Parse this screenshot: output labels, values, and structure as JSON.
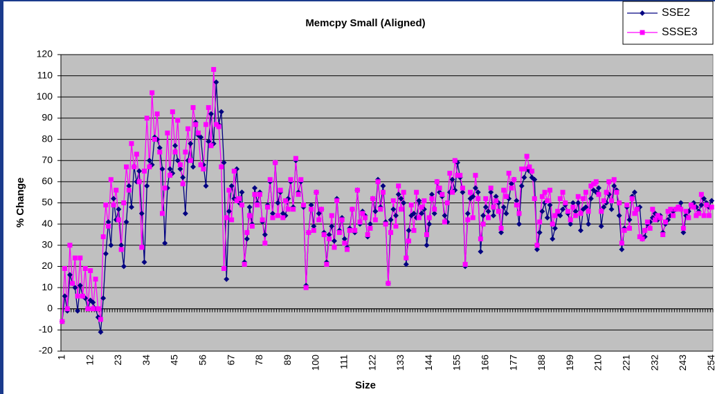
{
  "chart_data": {
    "type": "line",
    "title": "Memcpy Small (Aligned)",
    "x_label": "Size",
    "y_label": "% Change",
    "x": [
      1,
      2,
      3,
      4,
      5,
      6,
      7,
      8,
      9,
      10,
      11,
      12,
      13,
      14,
      15,
      16,
      17,
      18,
      19,
      20,
      21,
      22,
      23,
      24,
      25,
      26,
      27,
      28,
      29,
      30,
      31,
      32,
      33,
      34,
      35,
      36,
      37,
      38,
      39,
      40,
      41,
      42,
      43,
      44,
      45,
      46,
      47,
      48,
      49,
      50,
      51,
      52,
      53,
      54,
      55,
      56,
      57,
      58,
      59,
      60,
      61,
      62,
      63,
      64,
      65,
      66,
      67,
      68,
      69,
      70,
      71,
      72,
      73,
      74,
      75,
      76,
      77,
      78,
      79,
      80,
      81,
      82,
      83,
      84,
      85,
      86,
      87,
      88,
      89,
      90,
      91,
      92,
      93,
      94,
      95,
      96,
      97,
      98,
      99,
      100,
      101,
      102,
      103,
      104,
      105,
      106,
      107,
      108,
      109,
      110,
      111,
      112,
      113,
      114,
      115,
      116,
      117,
      118,
      119,
      120,
      121,
      122,
      123,
      124,
      125,
      126,
      127,
      128,
      129,
      130,
      131,
      132,
      133,
      134,
      135,
      136,
      137,
      138,
      139,
      140,
      141,
      142,
      143,
      144,
      145,
      146,
      147,
      148,
      149,
      150,
      151,
      152,
      153,
      154,
      155,
      156,
      157,
      158,
      159,
      160,
      161,
      162,
      163,
      164,
      165,
      166,
      167,
      168,
      169,
      170,
      171,
      172,
      173,
      174,
      175,
      176,
      177,
      178,
      179,
      180,
      181,
      182,
      183,
      184,
      185,
      186,
      187,
      188,
      189,
      190,
      191,
      192,
      193,
      194,
      195,
      196,
      197,
      198,
      199,
      200,
      201,
      202,
      203,
      204,
      205,
      206,
      207,
      208,
      209,
      210,
      211,
      212,
      213,
      214,
      215,
      216,
      217,
      218,
      219,
      220,
      221,
      222,
      223,
      224,
      225,
      226,
      227,
      228,
      229,
      230,
      231,
      232,
      233,
      234,
      235,
      236,
      237,
      238,
      239,
      240,
      241,
      242,
      243,
      244,
      245,
      246,
      247,
      248,
      249,
      250,
      251,
      252,
      253,
      254
    ],
    "xlim": [
      0.5,
      254.5
    ],
    "xticks": [
      1,
      12,
      23,
      34,
      45,
      56,
      67,
      78,
      89,
      100,
      111,
      122,
      133,
      144,
      155,
      166,
      177,
      188,
      199,
      210,
      221,
      232,
      243,
      254
    ],
    "ylim": [
      -20,
      120
    ],
    "yticks": [
      -20,
      -10,
      0,
      10,
      20,
      30,
      40,
      50,
      60,
      70,
      80,
      90,
      100,
      110,
      120
    ],
    "grid": true,
    "legend": "top-right",
    "series": [
      {
        "name": "SSE2",
        "color": "#000080",
        "marker": "diamond",
        "values": [
          -6,
          6,
          -1,
          16,
          12,
          10,
          -1,
          11,
          6,
          5,
          0,
          4,
          3,
          0,
          -4,
          -11,
          5,
          26,
          41,
          30,
          52,
          42,
          47,
          30,
          20,
          41,
          58,
          48,
          67,
          60,
          65,
          45,
          22,
          58,
          70,
          68,
          81,
          80,
          76,
          66,
          31,
          57,
          66,
          64,
          77,
          70,
          66,
          62,
          45,
          70,
          78,
          67,
          88,
          82,
          81,
          68,
          58,
          79,
          92,
          78,
          107,
          87,
          93,
          69,
          14,
          46,
          58,
          52,
          66,
          50,
          55,
          22,
          33,
          48,
          40,
          57,
          50,
          55,
          41,
          35,
          49,
          60,
          45,
          69,
          50,
          55,
          45,
          44,
          52,
          60,
          48,
          70,
          55,
          60,
          48,
          11,
          36,
          49,
          39,
          55,
          45,
          47,
          36,
          22,
          35,
          39,
          32,
          52,
          37,
          43,
          33,
          29,
          38,
          47,
          36,
          56,
          40,
          46,
          44,
          34,
          40,
          52,
          46,
          61,
          48,
          58,
          41,
          12,
          42,
          47,
          44,
          54,
          52,
          50,
          21,
          37,
          44,
          45,
          43,
          51,
          45,
          47,
          30,
          40,
          54,
          45,
          60,
          55,
          53,
          44,
          41,
          55,
          61,
          56,
          69,
          62,
          55,
          20,
          45,
          52,
          53,
          57,
          55,
          27,
          44,
          48,
          46,
          55,
          44,
          53,
          50,
          36,
          48,
          45,
          52,
          59,
          61,
          51,
          40,
          58,
          62,
          66,
          65,
          62,
          61,
          28,
          36,
          46,
          50,
          43,
          49,
          33,
          38,
          45,
          44,
          47,
          49,
          45,
          40,
          50,
          46,
          50,
          37,
          47,
          48,
          40,
          52,
          56,
          55,
          57,
          39,
          48,
          50,
          54,
          47,
          58,
          56,
          44,
          28,
          38,
          48,
          42,
          53,
          55,
          47,
          48,
          33,
          34,
          40,
          41,
          43,
          45,
          42,
          44,
          36,
          40,
          42,
          44,
          46,
          47,
          48,
          50,
          36,
          44,
          46,
          49,
          50,
          48,
          46,
          49,
          52,
          50,
          48,
          51
        ]
      },
      {
        "name": "SSSE3",
        "color": "#ff00ff",
        "marker": "square",
        "values": [
          -6,
          19,
          0,
          30,
          12,
          24,
          6,
          24,
          6,
          19,
          0,
          18,
          0,
          14,
          0,
          -5,
          34,
          49,
          39,
          61,
          49,
          56,
          42,
          28,
          50,
          67,
          56,
          78,
          67,
          73,
          60,
          29,
          65,
          90,
          67,
          102,
          80,
          92,
          74,
          45,
          57,
          83,
          63,
          93,
          74,
          89,
          68,
          59,
          74,
          85,
          70,
          95,
          87,
          83,
          68,
          66,
          87,
          95,
          77,
          113,
          87,
          86,
          67,
          19,
          43,
          56,
          42,
          65,
          51,
          52,
          49,
          21,
          36,
          44,
          39,
          54,
          49,
          54,
          42,
          31,
          48,
          61,
          43,
          69,
          44,
          56,
          43,
          51,
          47,
          61,
          47,
          71,
          54,
          61,
          49,
          10,
          36,
          47,
          37,
          55,
          42,
          47,
          35,
          21,
          33,
          44,
          29,
          51,
          36,
          42,
          31,
          28,
          37,
          47,
          37,
          56,
          41,
          45,
          43,
          35,
          38,
          52,
          42,
          60,
          47,
          55,
          40,
          12,
          36,
          51,
          39,
          58,
          47,
          55,
          24,
          32,
          49,
          37,
          55,
          43,
          48,
          51,
          35,
          43,
          52,
          47,
          60,
          57,
          54,
          41,
          50,
          64,
          55,
          70,
          63,
          63,
          57,
          21,
          42,
          55,
          43,
          63,
          52,
          33,
          40,
          52,
          43,
          57,
          48,
          51,
          46,
          38,
          56,
          53,
          64,
          57,
          61,
          49,
          45,
          66,
          66,
          72,
          67,
          65,
          52,
          30,
          41,
          53,
          55,
          51,
          56,
          40,
          44,
          46,
          52,
          55,
          50,
          46,
          42,
          48,
          44,
          53,
          45,
          52,
          55,
          46,
          58,
          59,
          60,
          54,
          46,
          51,
          55,
          60,
          51,
          61,
          55,
          50,
          31,
          37,
          49,
          38,
          52,
          45,
          47,
          34,
          33,
          37,
          41,
          38,
          47,
          42,
          44,
          43,
          35,
          41,
          46,
          47,
          44,
          47,
          48,
          47,
          38,
          46,
          43,
          49,
          48,
          44,
          45,
          54,
          44,
          49,
          44,
          48
        ]
      }
    ]
  }
}
